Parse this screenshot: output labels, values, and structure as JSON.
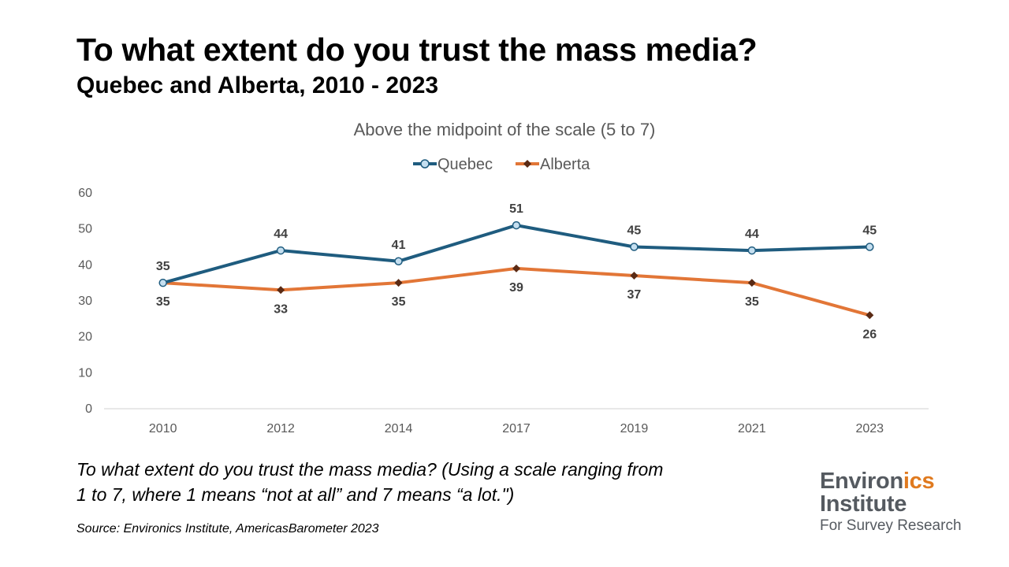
{
  "title": "To what extent do you trust the mass media?",
  "subtitle": "Quebec and Alberta, 2010 - 2023",
  "question_line1": "To what extent do you trust the mass media? (Using a scale ranging from",
  "question_line2": "1 to 7, where 1 means “not at all” and 7 means “a lot.\")",
  "source": "Source: Environics Institute, AmericasBarometer 2023",
  "logo": {
    "line1_a": "Environ",
    "line1_b": "ics",
    "line2": "Institute",
    "line3": "For Survey Research",
    "accent_color": "#e07a1f"
  },
  "chart_data": {
    "type": "line",
    "title": "Above the midpoint of the scale (5 to 7)",
    "categories": [
      "2010",
      "2012",
      "2014",
      "2017",
      "2019",
      "2021",
      "2023"
    ],
    "series": [
      {
        "name": "Quebec",
        "values": [
          35,
          44,
          41,
          51,
          45,
          44,
          45
        ],
        "color": "#1f5c7f",
        "marker": "circle",
        "label_position": "above"
      },
      {
        "name": "Alberta",
        "values": [
          35,
          33,
          35,
          39,
          37,
          35,
          26
        ],
        "color": "#e27637",
        "marker": "diamond",
        "label_position": "below"
      }
    ],
    "ylim": [
      0,
      60
    ],
    "yticks": [
      0,
      10,
      20,
      30,
      40,
      50,
      60
    ],
    "grid": false,
    "legend": "top-center"
  }
}
